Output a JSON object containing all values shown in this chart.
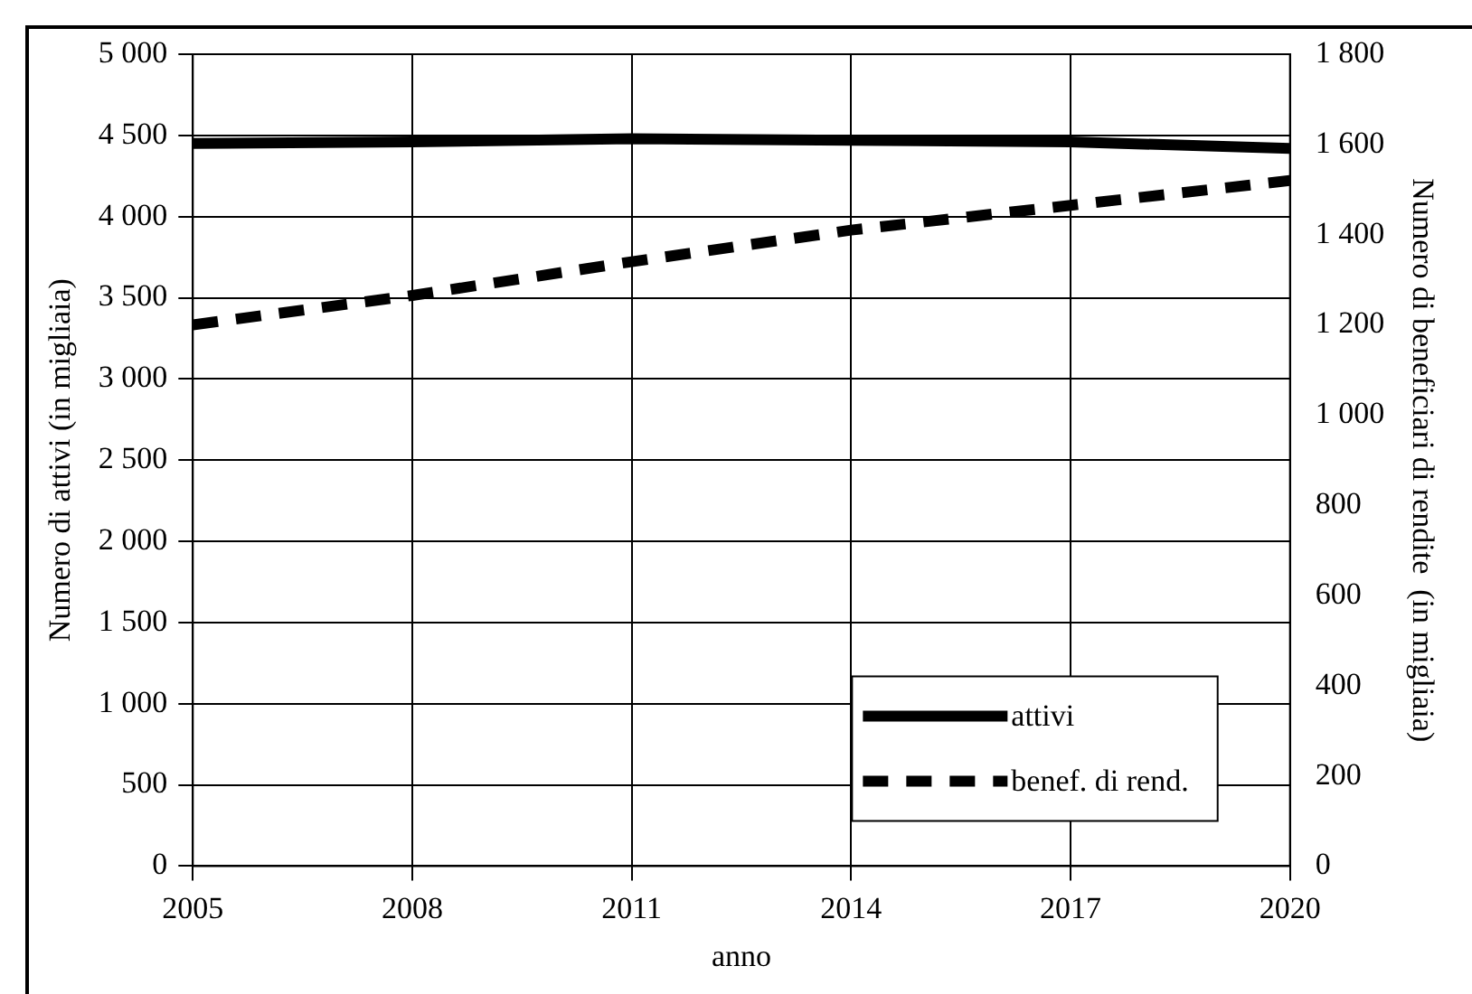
{
  "chart_data": {
    "type": "line",
    "xlabel": "anno",
    "ylabel": "Numero di attivi (in migliaia)",
    "y2label": "Numero di beneficiari di rendite  (in migliaia)",
    "x": [
      2005,
      2008,
      2011,
      2014,
      2017,
      2020
    ],
    "series": [
      {
        "name": "attivi",
        "color": "#000000",
        "values": [
          4450,
          4460,
          4480,
          4470,
          4460,
          4420
        ],
        "line_style": "solid"
      },
      {
        "name": "benef. di rend.",
        "color": "#000000",
        "values": [
          1200,
          1265,
          1340,
          1410,
          1465,
          1520
        ],
        "axis": "y2",
        "line_style": "dashed"
      }
    ],
    "xlim": [
      2005,
      2020
    ],
    "xticks": [
      2005,
      2008,
      2011,
      2014,
      2017,
      2020
    ],
    "ylim": [
      0,
      5000
    ],
    "yticks": [
      0,
      500,
      {
        "value": 1000,
        "label": "1 000"
      },
      {
        "value": 1500,
        "label": "1 500"
      },
      {
        "value": 2000,
        "label": "2 000"
      },
      {
        "value": 2500,
        "label": "2 500"
      },
      {
        "value": 3000,
        "label": "3 000"
      },
      {
        "value": 3500,
        "label": "3 500"
      },
      {
        "value": 4000,
        "label": "4 000"
      },
      {
        "value": 4500,
        "label": "4 500"
      },
      {
        "value": 5000,
        "label": "5 000"
      }
    ],
    "y2lim": [
      0,
      1800
    ],
    "y2ticks": [
      0,
      200,
      400,
      600,
      800,
      {
        "value": 1000,
        "label": "1 000"
      },
      {
        "value": 1200,
        "label": "1 200"
      },
      {
        "value": 1400,
        "label": "1 400"
      },
      {
        "value": 1600,
        "label": "1 600"
      },
      {
        "value": 1800,
        "label": "1 800"
      }
    ],
    "grid": true,
    "legend": "bottom right",
    "marker": "none"
  }
}
